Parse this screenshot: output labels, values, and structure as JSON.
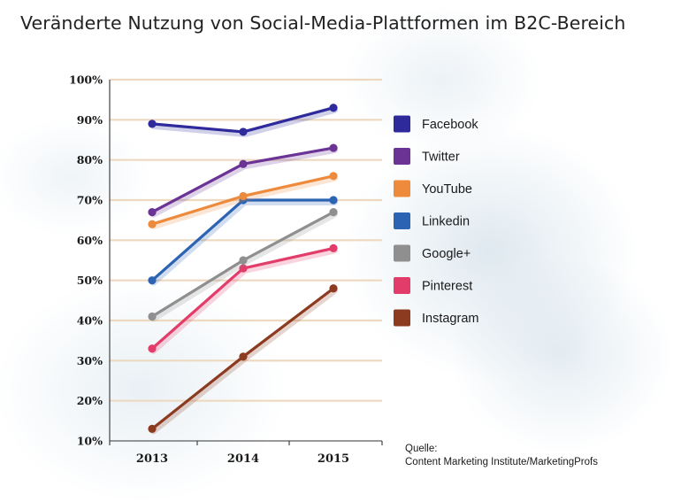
{
  "title": "Veränderte Nutzung von Social-Media-Plattformen im B2C-Bereich",
  "chart_data": {
    "type": "line",
    "title": "Veränderte Nutzung von Social-Media-Plattformen im B2C-Bereich",
    "xlabel": "",
    "ylabel": "",
    "x": [
      "2013",
      "2014",
      "2015"
    ],
    "ylim": [
      10,
      100
    ],
    "yticks": [
      "10%",
      "20%",
      "30%",
      "40%",
      "50%",
      "60%",
      "70%",
      "80%",
      "90%",
      "100%"
    ],
    "grid": true,
    "legend_position": "right",
    "series": [
      {
        "name": "Facebook",
        "values": [
          89,
          87,
          93
        ],
        "color": "#2e2a9b"
      },
      {
        "name": "Twitter",
        "values": [
          67,
          79,
          83
        ],
        "color": "#6a3394"
      },
      {
        "name": "YouTube",
        "values": [
          64,
          71,
          76
        ],
        "color": "#ee8a3c"
      },
      {
        "name": "Linkedin",
        "values": [
          50,
          70,
          70
        ],
        "color": "#2c63b2"
      },
      {
        "name": "Google+",
        "values": [
          41,
          55,
          67
        ],
        "color": "#8f8f8f"
      },
      {
        "name": "Pinterest",
        "values": [
          33,
          53,
          58
        ],
        "color": "#e23c6a"
      },
      {
        "name": "Instagram",
        "values": [
          13,
          31,
          48
        ],
        "color": "#8c3a20"
      }
    ],
    "source_label": "Quelle:",
    "source_text": "Content Marketing Institute/MarketingProfs"
  }
}
